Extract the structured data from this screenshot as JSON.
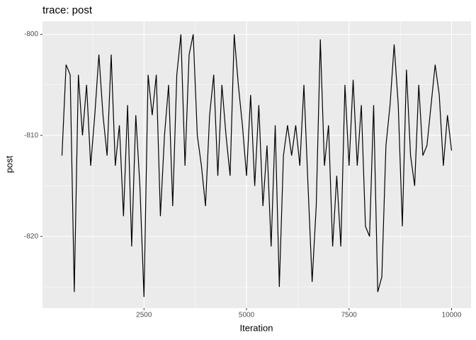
{
  "chart_data": {
    "type": "line",
    "title": "trace: post",
    "x_label": "Iteration",
    "y_label": "post",
    "x": [
      500,
      600,
      700,
      800,
      900,
      1000,
      1100,
      1200,
      1300,
      1400,
      1500,
      1600,
      1700,
      1800,
      1900,
      2000,
      2100,
      2200,
      2300,
      2400,
      2500,
      2600,
      2700,
      2800,
      2900,
      3000,
      3100,
      3200,
      3300,
      3400,
      3500,
      3600,
      3700,
      3800,
      3900,
      4000,
      4100,
      4200,
      4300,
      4400,
      4500,
      4600,
      4700,
      4800,
      4900,
      5000,
      5100,
      5200,
      5300,
      5400,
      5500,
      5600,
      5700,
      5800,
      5900,
      6000,
      6100,
      6200,
      6300,
      6400,
      6500,
      6600,
      6700,
      6800,
      6900,
      7000,
      7100,
      7200,
      7300,
      7400,
      7500,
      7600,
      7700,
      7800,
      7900,
      8000,
      8100,
      8200,
      8300,
      8400,
      8500,
      8600,
      8700,
      8800,
      8900,
      9000,
      9100,
      9200,
      9300,
      9400,
      9500,
      9600,
      9700,
      9800,
      9900,
      10000
    ],
    "series": [
      {
        "name": "post",
        "color": "#000000",
        "values": [
          -812,
          -803,
          -804,
          -825.5,
          -804,
          -810,
          -805,
          -813,
          -808,
          -802,
          -808,
          -812,
          -802,
          -813,
          -809,
          -818,
          -807,
          -821,
          -808,
          -815,
          -826,
          -804,
          -808,
          -804,
          -818,
          -810,
          -805,
          -817,
          -804,
          -800,
          -813,
          -802,
          -800,
          -810,
          -813,
          -817,
          -808,
          -804,
          -814,
          -805,
          -810,
          -814,
          -800,
          -805,
          -809,
          -814,
          -806,
          -815,
          -807,
          -817,
          -811,
          -821,
          -809,
          -825,
          -812,
          -809,
          -812,
          -809,
          -813,
          -805,
          -815,
          -824.5,
          -817,
          -800.5,
          -813,
          -809,
          -821,
          -814,
          -821,
          -805,
          -813,
          -804.5,
          -813,
          -807,
          -819,
          -820,
          -807,
          -825.5,
          -824,
          -811,
          -807,
          -801,
          -807,
          -819,
          -803.5,
          -812,
          -815,
          -805,
          -812,
          -811,
          -807,
          -803,
          -806,
          -813,
          -808,
          -811.5
        ]
      }
    ],
    "xlim": [
      25,
      10475
    ],
    "xticks": [
      {
        "value": 2500,
        "label": "2500"
      },
      {
        "value": 5000,
        "label": "5000"
      },
      {
        "value": 7500,
        "label": "7500"
      },
      {
        "value": 10000,
        "label": "10000"
      }
    ],
    "ylim": [
      -827.1,
      -798.7
    ],
    "yticks": [
      -820,
      -810,
      -800
    ],
    "grid": true
  }
}
